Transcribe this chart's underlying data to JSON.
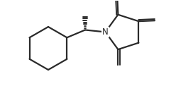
{
  "bg_color": "#ffffff",
  "line_color": "#2a2a2a",
  "line_width": 1.6,
  "figsize": [
    2.48,
    1.39
  ],
  "dpi": 100,
  "xlim": [
    0,
    10
  ],
  "ylim": [
    0,
    7
  ]
}
